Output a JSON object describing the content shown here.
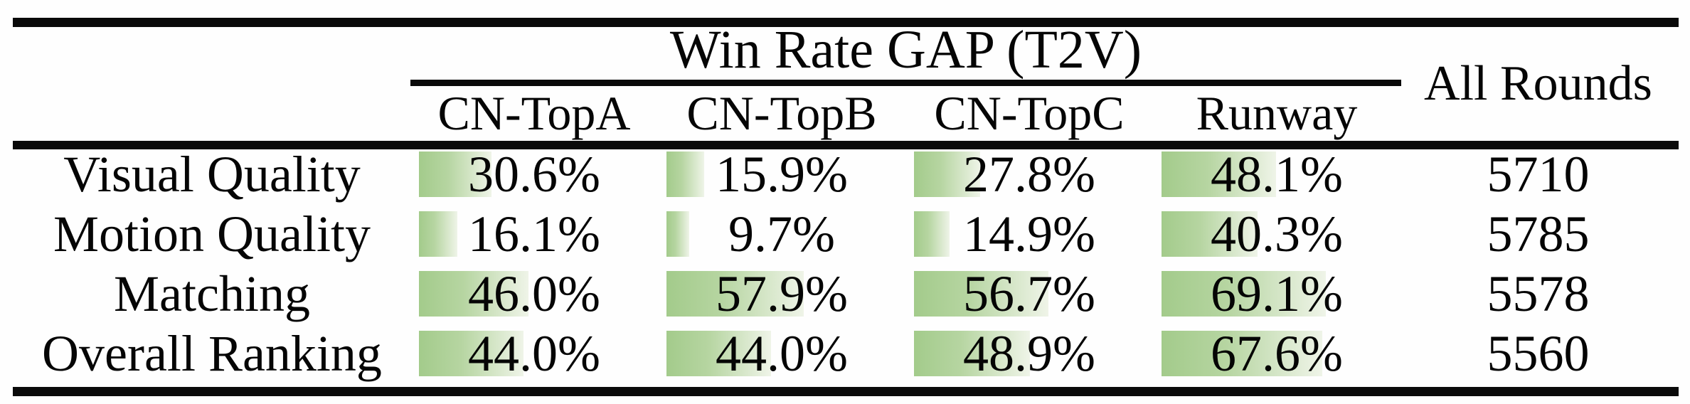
{
  "table": {
    "group_header": "Win Rate GAP (T2V)",
    "all_rounds_header": "All Rounds",
    "columns": [
      "CN-TopA",
      "CN-TopB",
      "CN-TopC",
      "Runway"
    ],
    "rows": [
      {
        "label": "Visual Quality",
        "cells": [
          {
            "text": "30.6%",
            "pct": 30.6
          },
          {
            "text": "15.9%",
            "pct": 15.9
          },
          {
            "text": "27.8%",
            "pct": 27.8
          },
          {
            "text": "48.1%",
            "pct": 48.1
          }
        ],
        "total": "5710"
      },
      {
        "label": "Motion Quality",
        "cells": [
          {
            "text": "16.1%",
            "pct": 16.1
          },
          {
            "text": "9.7%",
            "pct": 9.7
          },
          {
            "text": "14.9%",
            "pct": 14.9
          },
          {
            "text": "40.3%",
            "pct": 40.3
          }
        ],
        "total": "5785"
      },
      {
        "label": "Matching",
        "cells": [
          {
            "text": "46.0%",
            "pct": 46.0
          },
          {
            "text": "57.9%",
            "pct": 57.9
          },
          {
            "text": "56.7%",
            "pct": 56.7
          },
          {
            "text": "69.1%",
            "pct": 69.1
          }
        ],
        "total": "5578"
      },
      {
        "label": "Overall Ranking",
        "cells": [
          {
            "text": "44.0%",
            "pct": 44.0
          },
          {
            "text": "44.0%",
            "pct": 44.0
          },
          {
            "text": "48.9%",
            "pct": 48.9
          },
          {
            "text": "67.6%",
            "pct": 67.6
          }
        ],
        "total": "5560"
      }
    ]
  },
  "colors": {
    "bar_green": "#a3cb8b",
    "bar_fade": "#eff4e8",
    "rule_black": "#0a0a0a",
    "text": "#050505"
  }
}
